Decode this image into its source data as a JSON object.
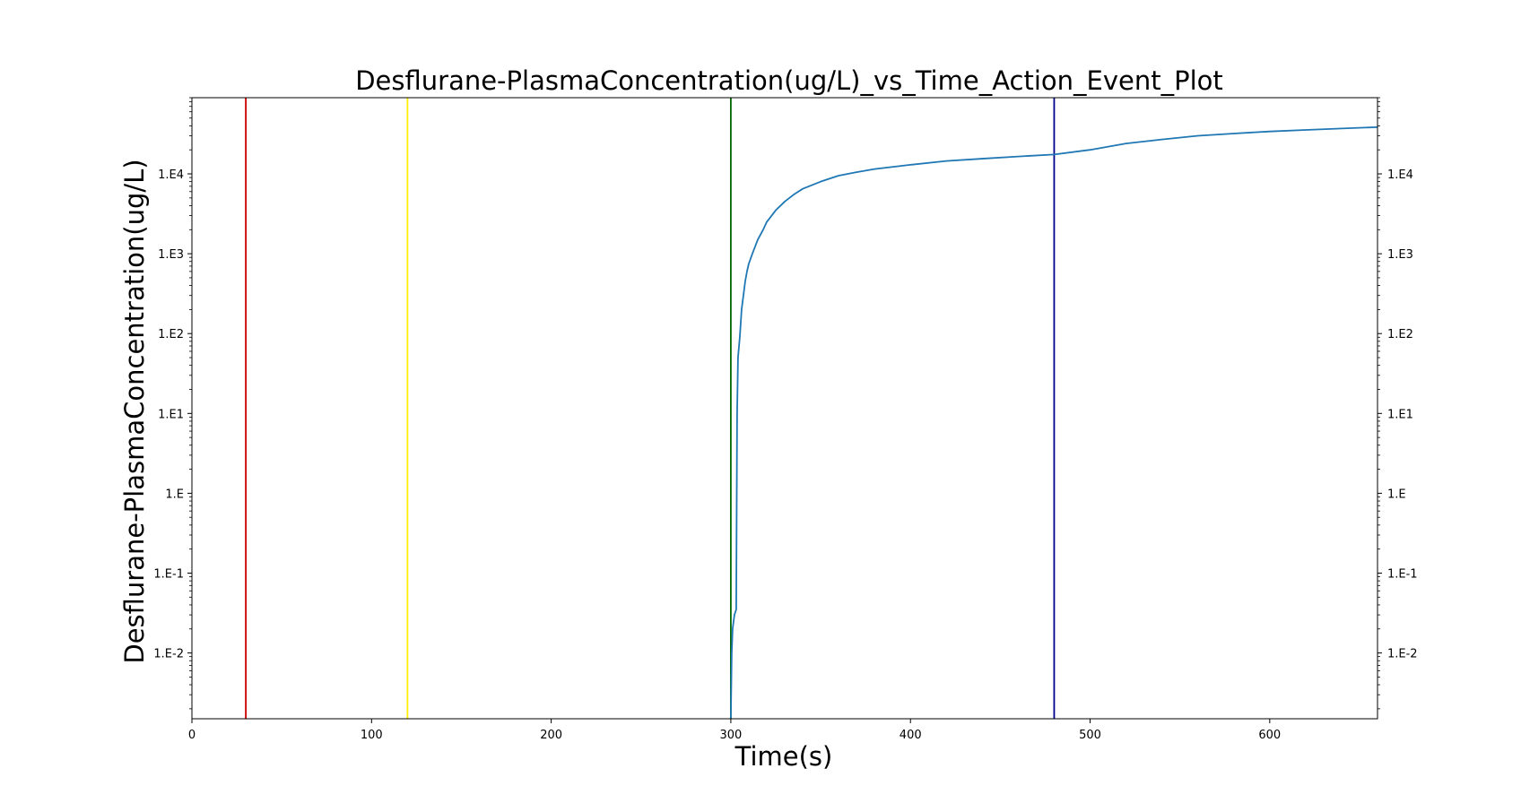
{
  "chart_data": {
    "type": "line",
    "title": "Desflurane-PlasmaConcentration(ug/L)_vs_Time_Action_Event_Plot",
    "xlabel": "Time(s)",
    "ylabel": "Desflurane-PlasmaConcentration(ug/L)",
    "x_scale": "linear",
    "y_scale": "log",
    "xlim": [
      0,
      660
    ],
    "ylim": [
      0.0015,
      90000
    ],
    "x_ticks": [
      0,
      100,
      200,
      300,
      400,
      500,
      600
    ],
    "x_tick_labels": [
      "0",
      "100",
      "200",
      "300",
      "400",
      "500",
      "600"
    ],
    "y_ticks": [
      0.01,
      0.1,
      1,
      10,
      100,
      1000,
      10000
    ],
    "y_tick_labels": [
      "1.E-2",
      "1.E-1",
      "1.E",
      "1.E1",
      "1.E2",
      "1.E3",
      "1.E4"
    ],
    "right_axis_tick_labels": [
      "1.E-2",
      "1.E-1",
      "1.E",
      "1.E1",
      "1.E2",
      "1.E3",
      "1.E4"
    ],
    "grid": false,
    "event_lines": [
      {
        "x": 30,
        "color": "#cc0000"
      },
      {
        "x": 120,
        "color": "#ffee00"
      },
      {
        "x": 300,
        "color": "#006400"
      },
      {
        "x": 480,
        "color": "#00008b"
      }
    ],
    "series": [
      {
        "color": "#1f77b4",
        "x": [
          300,
          300.5,
          301,
          302,
          303,
          303.5,
          304,
          305,
          306,
          307,
          308,
          309,
          310,
          312,
          315,
          318,
          320,
          325,
          330,
          335,
          340,
          350,
          360,
          370,
          380,
          400,
          420,
          440,
          460,
          480,
          500,
          520,
          540,
          560,
          580,
          600,
          620,
          640,
          660
        ],
        "y": [
          0.0015,
          0.01,
          0.02,
          0.03,
          0.035,
          10,
          50,
          90,
          200,
          300,
          450,
          600,
          750,
          1000,
          1500,
          2000,
          2500,
          3500,
          4500,
          5500,
          6500,
          8000,
          9500,
          10500,
          11500,
          13000,
          14500,
          15500,
          16500,
          17500,
          20000,
          24000,
          27000,
          30000,
          32000,
          34000,
          35500,
          37000,
          38500
        ]
      }
    ]
  }
}
